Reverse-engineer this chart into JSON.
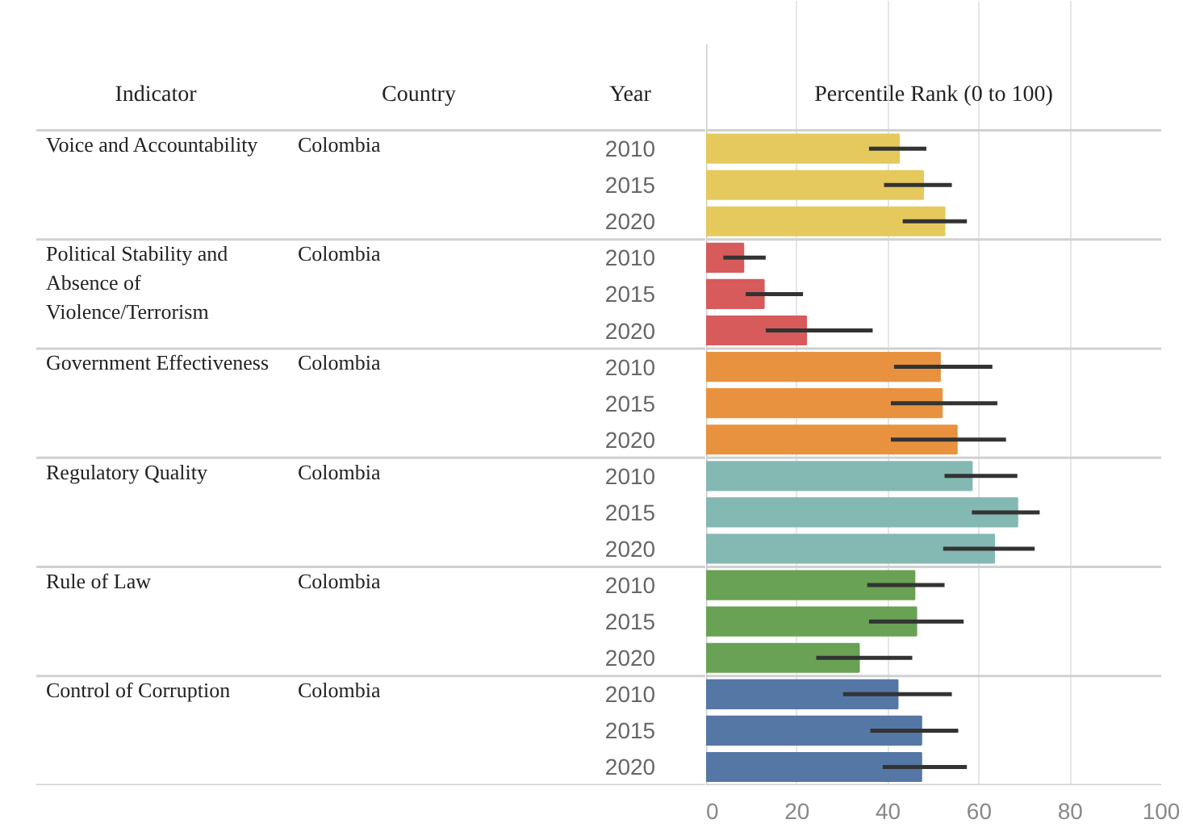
{
  "chart_data": {
    "type": "bar",
    "orientation": "horizontal",
    "xlabel": "Percentile Rank (0 to 100)",
    "ylabel": "Year",
    "categories": [
      "2010",
      "2015",
      "2020",
      "2010",
      "2015",
      "2020",
      "2010",
      "2015",
      "2020",
      "2010",
      "2015",
      "2020",
      "2010",
      "2015",
      "2020",
      "2010",
      "2015",
      "2020"
    ],
    "series": [
      {
        "name": "Voice and Accountability",
        "color": "#e5c95c",
        "values": [
          42.4,
          47.7,
          52.4,
          null,
          null,
          null,
          null,
          null,
          null,
          null,
          null,
          null,
          null,
          null,
          null,
          null,
          null,
          null
        ],
        "errors": [
          [
            35.8,
            48.4
          ],
          [
            39.1,
            54.0
          ],
          [
            43.2,
            57.3
          ],
          null,
          null,
          null,
          null,
          null,
          null,
          null,
          null,
          null,
          null,
          null,
          null,
          null,
          null,
          null
        ]
      },
      {
        "name": "Political Stability and Absence of Violence/Terrorism",
        "color": "#d75b5b",
        "values": [
          null,
          null,
          null,
          8.2,
          12.7,
          22.0,
          null,
          null,
          null,
          null,
          null,
          null,
          null,
          null,
          null,
          null,
          null,
          null
        ],
        "errors": [
          null,
          null,
          null,
          [
            3.8,
            13.1
          ],
          [
            8.7,
            21.3
          ],
          [
            13.1,
            36.6
          ],
          null,
          null,
          null,
          null,
          null,
          null,
          null,
          null,
          null,
          null,
          null,
          null
        ]
      },
      {
        "name": "Government Effectiveness",
        "color": "#e8923f",
        "values": [
          null,
          null,
          null,
          null,
          null,
          null,
          51.4,
          51.8,
          55.1,
          null,
          null,
          null,
          null,
          null,
          null,
          null,
          null,
          null
        ],
        "errors": [
          null,
          null,
          null,
          null,
          null,
          null,
          [
            41.3,
            62.9
          ],
          [
            40.6,
            64.0
          ],
          [
            40.6,
            65.9
          ],
          null,
          null,
          null,
          null,
          null,
          null,
          null,
          null,
          null
        ]
      },
      {
        "name": "Regulatory Quality",
        "color": "#84b8b3",
        "values": [
          null,
          null,
          null,
          null,
          null,
          null,
          null,
          null,
          null,
          58.4,
          68.4,
          63.3,
          null,
          null,
          null,
          null,
          null,
          null
        ],
        "errors": [
          null,
          null,
          null,
          null,
          null,
          null,
          null,
          null,
          null,
          [
            52.4,
            68.4
          ],
          [
            58.4,
            73.3
          ],
          [
            52.1,
            72.2
          ],
          null,
          null,
          null,
          null,
          null,
          null
        ]
      },
      {
        "name": "Rule of Law",
        "color": "#69a254",
        "values": [
          null,
          null,
          null,
          null,
          null,
          null,
          null,
          null,
          null,
          null,
          null,
          null,
          45.8,
          46.2,
          33.6,
          null,
          null,
          null
        ],
        "errors": [
          null,
          null,
          null,
          null,
          null,
          null,
          null,
          null,
          null,
          null,
          null,
          null,
          [
            35.4,
            52.4
          ],
          [
            35.8,
            56.6
          ],
          [
            24.2,
            45.3
          ],
          null,
          null,
          null
        ]
      },
      {
        "name": "Control of Corruption",
        "color": "#5577a5",
        "values": [
          null,
          null,
          null,
          null,
          null,
          null,
          null,
          null,
          null,
          null,
          null,
          null,
          null,
          null,
          null,
          42.1,
          47.3,
          47.3
        ],
        "errors": [
          null,
          null,
          null,
          null,
          null,
          null,
          null,
          null,
          null,
          null,
          null,
          null,
          null,
          null,
          null,
          [
            30.1,
            54.0
          ],
          [
            36.1,
            55.4
          ],
          [
            38.8,
            57.3
          ]
        ]
      }
    ],
    "xlim": [
      0,
      100
    ],
    "xticks": [
      0,
      20,
      40,
      60,
      80,
      100
    ],
    "grid": "x",
    "annotations": [
      "Indicator",
      "Country",
      "Colombia",
      "Colombia",
      "Colombia",
      "Colombia",
      "Colombia",
      "Colombia"
    ]
  }
}
